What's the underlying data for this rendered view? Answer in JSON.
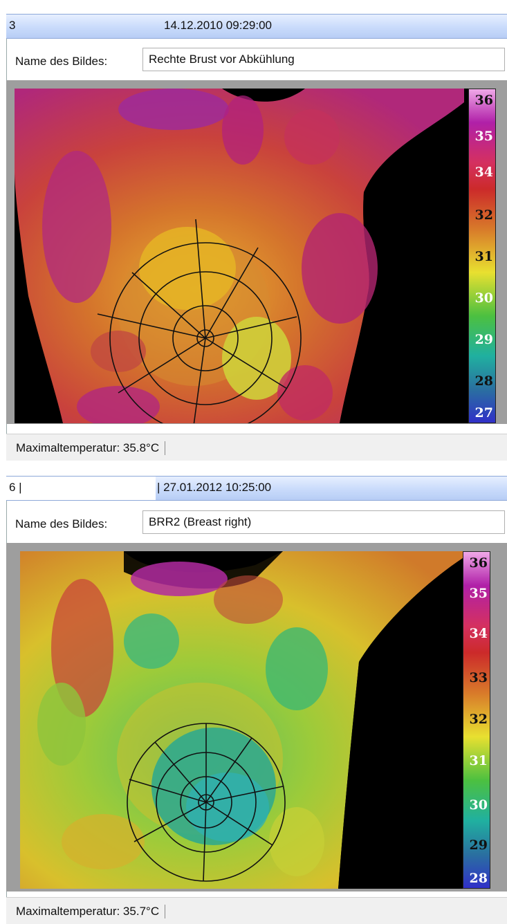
{
  "panels": [
    {
      "index": "3",
      "date": "14.12.2010 09:29:00",
      "name_label": "Name des Bildes:",
      "name_value": "Rechte Brust vor Abkühlung",
      "scale_labels": [
        "36",
        "35",
        "34",
        "32",
        "31",
        "30",
        "29",
        "28",
        "27"
      ],
      "status": "Maximaltemperatur: 35.8°C"
    },
    {
      "index": "6 |",
      "date": "| 27.01.2012 10:25:00",
      "name_label": "Name des Bildes:",
      "name_value": "BRR2 (Breast right)",
      "scale_labels": [
        "36",
        "35",
        "34",
        "33",
        "32",
        "31",
        "30",
        "29",
        "28"
      ],
      "status": "Maximaltemperatur: 35.7°C"
    }
  ],
  "colors": {
    "header_gradient": "#c9dbfb",
    "palette_hot": "#b0208e",
    "palette_warm": "#cc3a36",
    "palette_mid": "#e6c024",
    "palette_cool": "#1aa860",
    "palette_cold": "#3030b0"
  }
}
